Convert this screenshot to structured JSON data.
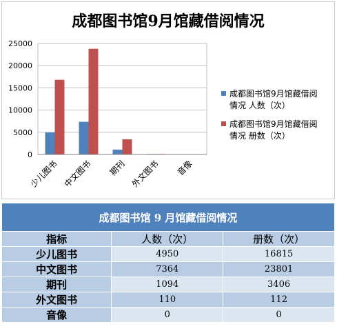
{
  "chart_data": {
    "type": "bar",
    "title": "成都图书馆9月馆藏借阅情况",
    "categories": [
      "少儿图书",
      "中文图书",
      "期刊",
      "外文图书",
      "音像"
    ],
    "series": [
      {
        "name": "成都图书馆9月馆藏借阅情况 人数（次）",
        "color": "#4f81bd",
        "values": [
          4950,
          7364,
          1094,
          110,
          0
        ]
      },
      {
        "name": "成都图书馆9月馆藏借阅情况 册数（次）",
        "color": "#c0504d",
        "values": [
          16815,
          23801,
          3406,
          112,
          0
        ]
      }
    ],
    "ylim": [
      0,
      25000
    ],
    "yticks": [
      0,
      5000,
      10000,
      15000,
      20000,
      25000
    ],
    "grid": true,
    "legend": "right"
  },
  "table": {
    "title": "成都图书馆 9 月馆藏借阅情况",
    "headers": [
      "指标",
      "人数（次）",
      "册数（次）"
    ],
    "rows": [
      [
        "少儿图书",
        "4950",
        "16815"
      ],
      [
        "中文图书",
        "7364",
        "23801"
      ],
      [
        "期刊",
        "1094",
        "3406"
      ],
      [
        "外文图书",
        "110",
        "112"
      ],
      [
        "音像",
        "0",
        "0"
      ]
    ]
  }
}
